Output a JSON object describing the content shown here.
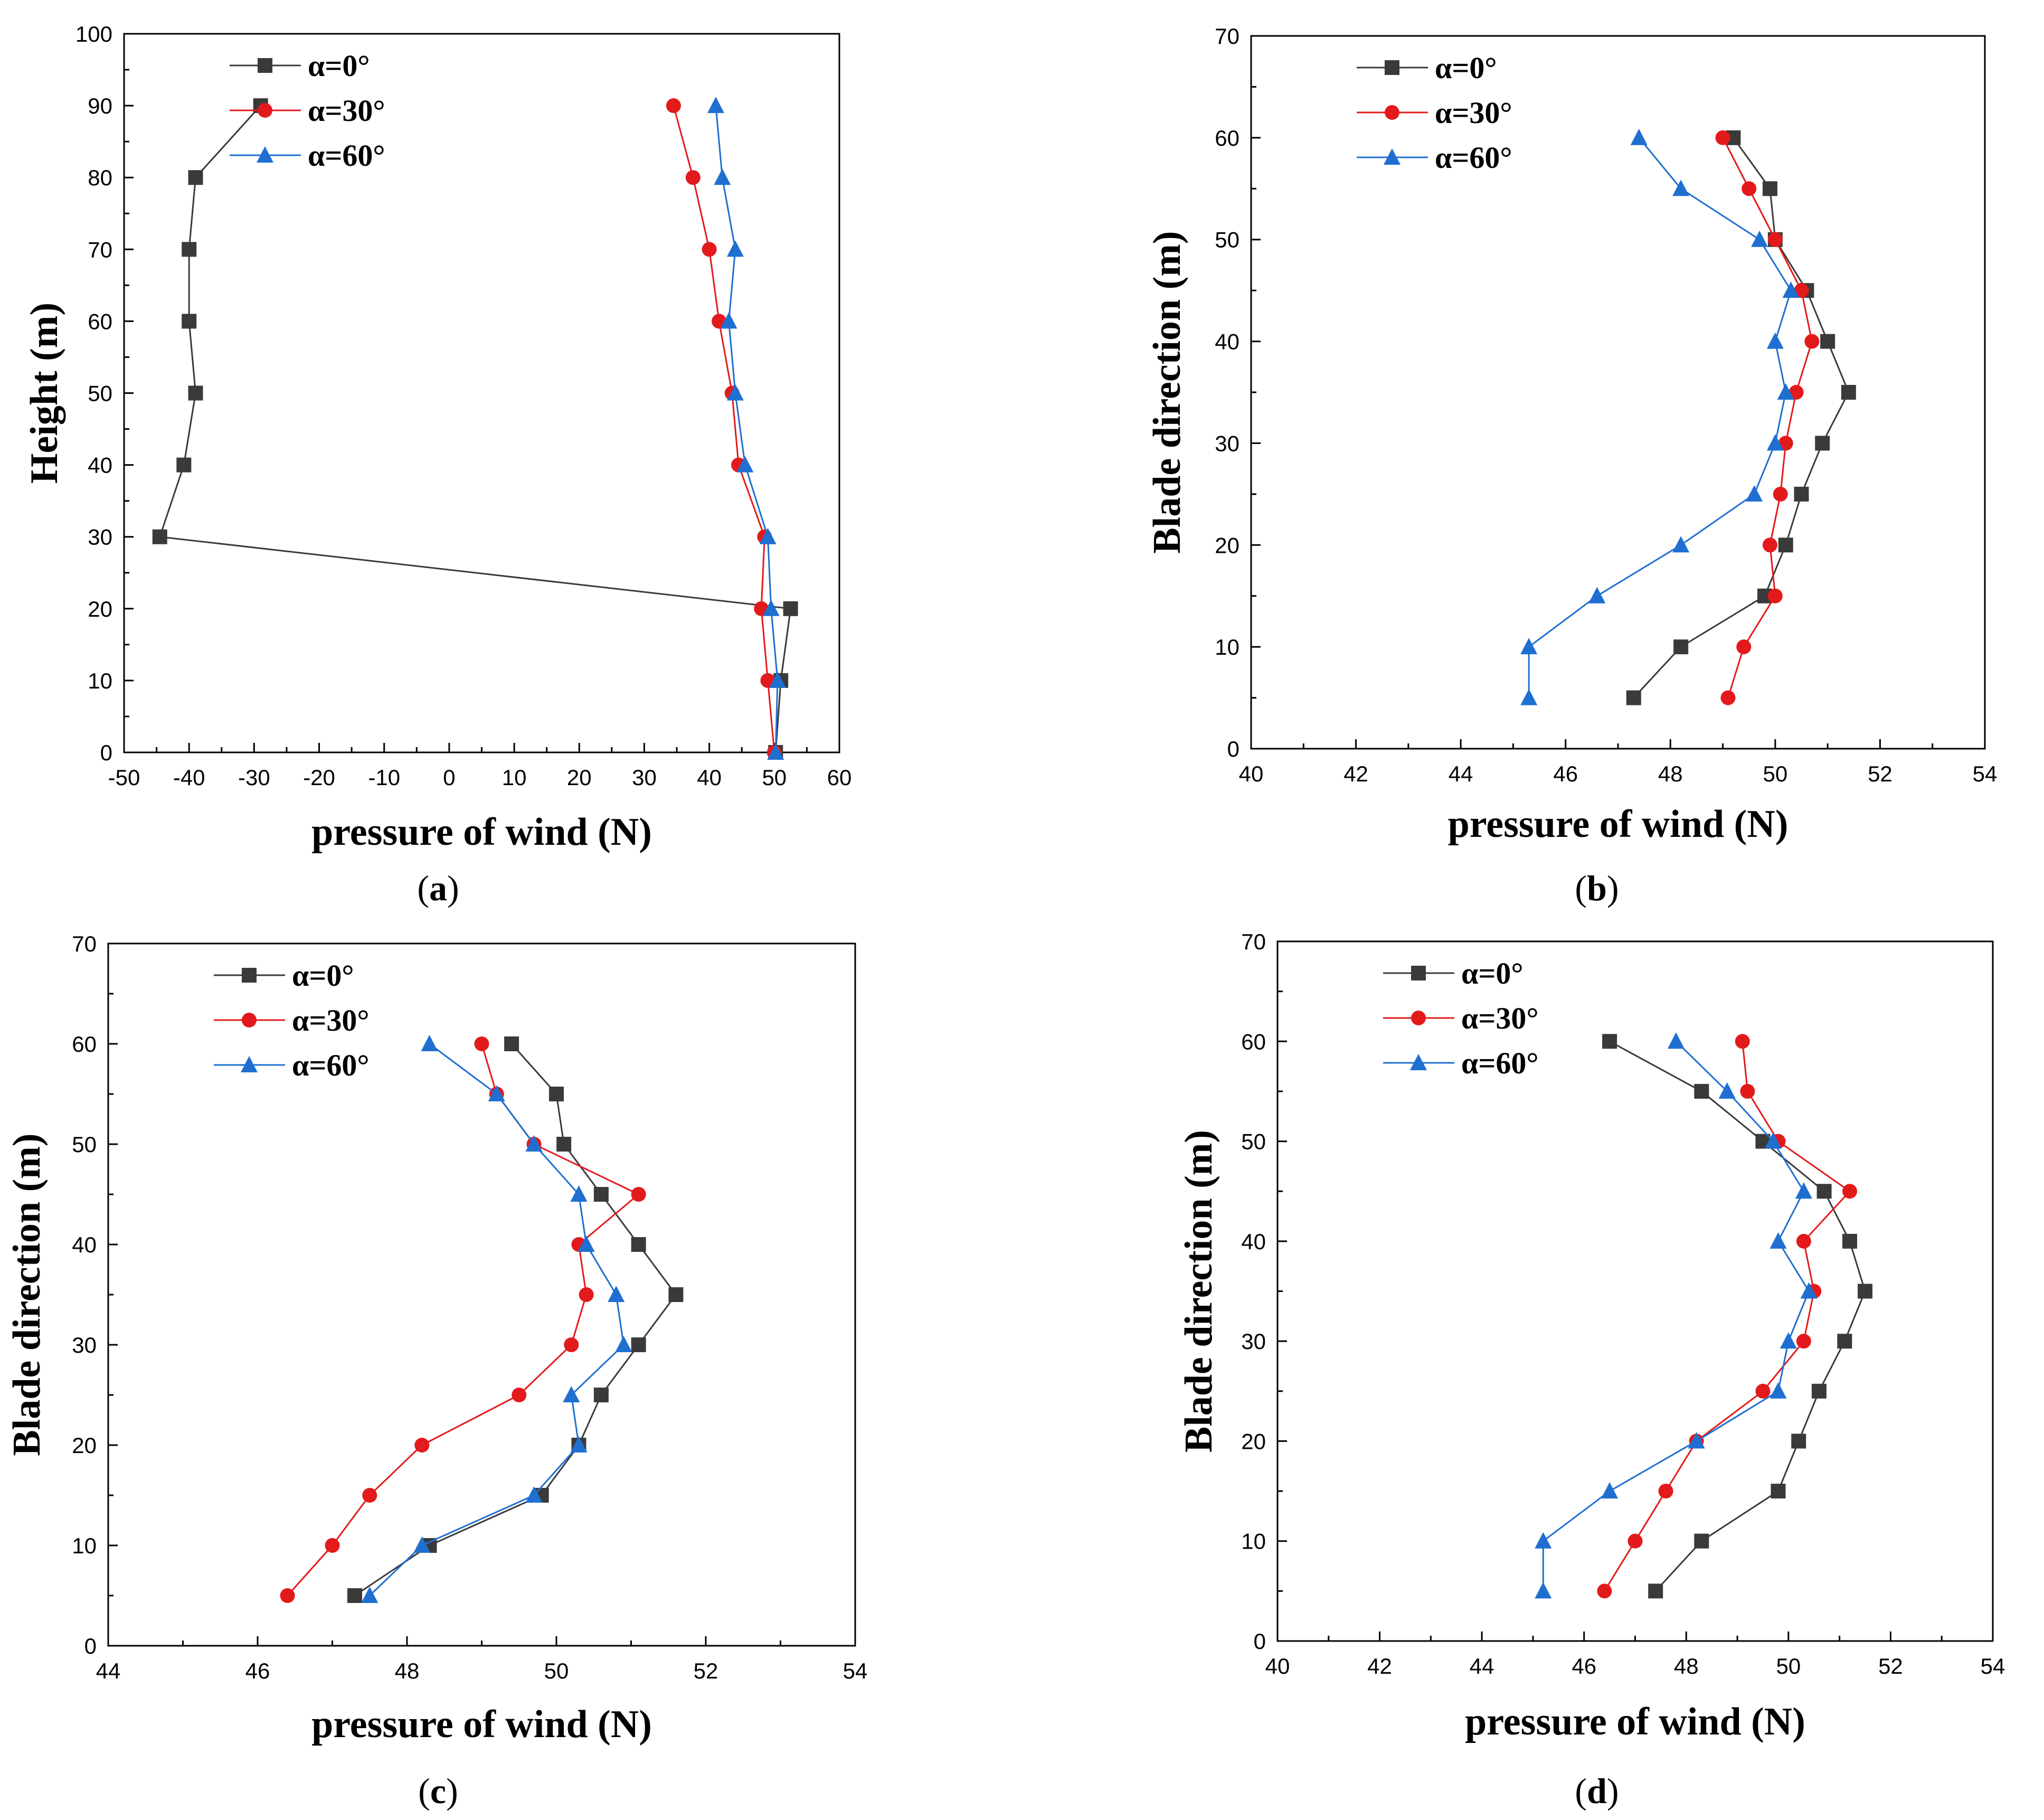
{
  "colors": {
    "alpha0": "#3a3a3a",
    "alpha30": "#e31a1c",
    "alpha60": "#1f6fd1"
  },
  "chart_data": [
    {
      "panel": "a",
      "type": "line",
      "xlabel": "pressure of wind (N)",
      "ylabel": "Height (m)",
      "xlim": [
        -50,
        60
      ],
      "ylim": [
        0,
        100
      ],
      "xticks": [
        -50,
        -40,
        -30,
        -20,
        -10,
        0,
        10,
        20,
        30,
        40,
        50,
        60
      ],
      "yticks": [
        0,
        10,
        20,
        30,
        40,
        50,
        60,
        70,
        80,
        90,
        100
      ],
      "legend": [
        "α=0°",
        "α=30°",
        "α=60°"
      ],
      "series": [
        {
          "name": "α=0°",
          "marker": "square",
          "y": [
            0,
            10,
            20,
            30,
            40,
            50,
            60,
            70,
            80,
            90
          ],
          "x": [
            50.2,
            51,
            52.5,
            -44.5,
            -40.8,
            -39,
            -40,
            -40,
            -39,
            -29
          ]
        },
        {
          "name": "α=30°",
          "marker": "diamond",
          "y": [
            0,
            10,
            20,
            30,
            40,
            50,
            60,
            70,
            80,
            90
          ],
          "x": [
            50,
            49,
            48,
            48.5,
            44.5,
            43.5,
            41.5,
            40,
            37.5,
            34.5
          ]
        },
        {
          "name": "α=60°",
          "marker": "triangle",
          "y": [
            0,
            10,
            20,
            30,
            40,
            50,
            60,
            70,
            80,
            90
          ],
          "x": [
            50.2,
            50.5,
            49.5,
            49,
            45.5,
            44,
            43,
            44,
            42,
            41
          ]
        }
      ]
    },
    {
      "panel": "b",
      "type": "line",
      "xlabel": "pressure of wind (N)",
      "ylabel": "Blade direction (m)",
      "xlim": [
        40,
        54
      ],
      "ylim": [
        0,
        70
      ],
      "xticks": [
        40,
        42,
        44,
        46,
        48,
        50,
        52,
        54
      ],
      "yticks": [
        0,
        10,
        20,
        30,
        40,
        50,
        60,
        70
      ],
      "legend": [
        "α=0°",
        "α=30°",
        "α=60°"
      ],
      "series": [
        {
          "name": "α=0°",
          "marker": "square",
          "y": [
            5,
            10,
            15,
            20,
            25,
            30,
            35,
            40,
            45,
            50,
            55,
            60
          ],
          "x": [
            47.3,
            48.2,
            49.8,
            50.2,
            50.5,
            50.9,
            51.4,
            51.0,
            50.6,
            50.0,
            49.9,
            49.2
          ]
        },
        {
          "name": "α=30°",
          "marker": "diamond",
          "y": [
            5,
            10,
            15,
            20,
            25,
            30,
            35,
            40,
            45,
            50,
            55,
            60
          ],
          "x": [
            49.1,
            49.4,
            50.0,
            49.9,
            50.1,
            50.2,
            50.4,
            50.7,
            50.5,
            50.0,
            49.5,
            49.0
          ]
        },
        {
          "name": "α=60°",
          "marker": "triangle",
          "y": [
            5,
            10,
            15,
            20,
            25,
            30,
            35,
            40,
            45,
            50,
            55,
            60
          ],
          "x": [
            45.3,
            45.3,
            46.6,
            48.2,
            49.6,
            50.0,
            50.2,
            50.0,
            50.3,
            49.7,
            48.2,
            47.4
          ]
        }
      ]
    },
    {
      "panel": "c",
      "type": "line",
      "xlabel": "pressure of wind (N)",
      "ylabel": "Blade direction (m)",
      "xlim": [
        44,
        54
      ],
      "ylim": [
        0,
        70
      ],
      "xticks": [
        44,
        46,
        48,
        50,
        52,
        54
      ],
      "yticks": [
        0,
        10,
        20,
        30,
        40,
        50,
        60,
        70
      ],
      "legend": [
        "α=0°",
        "α=30°",
        "α=60°"
      ],
      "series": [
        {
          "name": "α=0°",
          "marker": "square",
          "y": [
            5,
            10,
            15,
            20,
            25,
            30,
            35,
            40,
            45,
            50,
            55,
            60
          ],
          "x": [
            47.3,
            48.3,
            49.8,
            50.3,
            50.6,
            51.1,
            51.6,
            51.1,
            50.6,
            50.1,
            50.0,
            49.4
          ]
        },
        {
          "name": "α=30°",
          "marker": "diamond",
          "y": [
            5,
            10,
            15,
            20,
            25,
            30,
            35,
            40,
            45,
            50,
            55,
            60
          ],
          "x": [
            46.4,
            47.0,
            47.5,
            48.2,
            49.5,
            50.2,
            50.4,
            50.3,
            51.1,
            49.7,
            49.2,
            49.0
          ]
        },
        {
          "name": "α=60°",
          "marker": "triangle",
          "y": [
            5,
            10,
            15,
            20,
            25,
            30,
            35,
            40,
            45,
            50,
            55,
            60
          ],
          "x": [
            47.5,
            48.2,
            49.7,
            50.3,
            50.2,
            50.9,
            50.8,
            50.4,
            50.3,
            49.7,
            49.2,
            48.3
          ]
        }
      ]
    },
    {
      "panel": "d",
      "type": "line",
      "xlabel": "pressure of wind (N)",
      "ylabel": "Blade direction (m)",
      "xlim": [
        40,
        54
      ],
      "ylim": [
        0,
        70
      ],
      "xticks": [
        40,
        42,
        44,
        46,
        48,
        50,
        52,
        54
      ],
      "yticks": [
        0,
        10,
        20,
        30,
        40,
        50,
        60,
        70
      ],
      "legend": [
        "α=0°",
        "α=30°",
        "α=60°"
      ],
      "series": [
        {
          "name": "α=0°",
          "marker": "square",
          "y": [
            5,
            10,
            15,
            20,
            25,
            30,
            35,
            40,
            45,
            50,
            55,
            60
          ],
          "x": [
            47.4,
            48.3,
            49.8,
            50.2,
            50.6,
            51.1,
            51.5,
            51.2,
            50.7,
            49.5,
            48.3,
            46.5
          ]
        },
        {
          "name": "α=30°",
          "marker": "diamond",
          "y": [
            5,
            10,
            15,
            20,
            25,
            30,
            35,
            40,
            45,
            50,
            55,
            60
          ],
          "x": [
            46.4,
            47.0,
            47.6,
            48.2,
            49.5,
            50.3,
            50.5,
            50.3,
            51.2,
            49.8,
            49.2,
            49.1
          ]
        },
        {
          "name": "α=60°",
          "marker": "triangle",
          "y": [
            5,
            10,
            15,
            20,
            25,
            30,
            35,
            40,
            45,
            50,
            55,
            60
          ],
          "x": [
            45.2,
            45.2,
            46.5,
            48.2,
            49.8,
            50.0,
            50.4,
            49.8,
            50.3,
            49.7,
            48.8,
            47.8
          ]
        }
      ]
    }
  ],
  "panel_labels": [
    "a",
    "b",
    "c",
    "d"
  ]
}
